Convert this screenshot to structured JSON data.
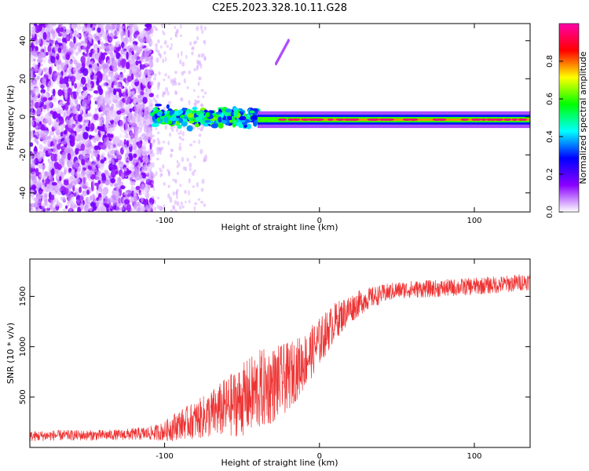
{
  "figure_title": "C2E5.2023.328.10.11.G28",
  "chart_data": [
    {
      "type": "heatmap",
      "title": "C2E5.2023.328.10.11.G28",
      "xlabel": "Height of straight line (km)",
      "ylabel": "Frequency (Hz)",
      "xlim": [
        -187,
        136
      ],
      "ylim": [
        -50,
        49
      ],
      "x_ticks": [
        -100,
        0,
        100
      ],
      "y_ticks": [
        -40,
        -20,
        0,
        20,
        40
      ],
      "colorbar": {
        "label": "Normalized spectral amplitude",
        "range": [
          0,
          1
        ],
        "ticks": [
          0.0,
          0.2,
          0.4,
          0.6,
          0.8
        ],
        "colormap": [
          "#ffffff",
          "#8a00ff",
          "#0000ff",
          "#00ffff",
          "#00ff00",
          "#ffff00",
          "#ff0000",
          "#ff00aa"
        ]
      },
      "features": [
        {
          "name": "broadband noise",
          "x_range": [
            -187,
            -108
          ],
          "freq_range": [
            -50,
            49
          ],
          "amplitude": 0.1
        },
        {
          "name": "transition band",
          "x_range": [
            -108,
            -40
          ],
          "freq_center": 0,
          "freq_halfwidth": 6,
          "amplitude": 0.35
        },
        {
          "name": "meteor trail line",
          "x_range": [
            -40,
            136
          ],
          "freq_center": -1.5,
          "freq_halfwidth": 2,
          "amplitude": 0.9
        },
        {
          "name": "diagonal streak",
          "x_range": [
            -28,
            -20
          ],
          "freq_range": [
            28,
            40
          ],
          "amplitude": 0.1
        }
      ]
    },
    {
      "type": "line",
      "xlabel": "Height of straight line (km)",
      "ylabel": "SNR (10 * v/v)",
      "xlim": [
        -187,
        136
      ],
      "ylim": [
        0,
        1870
      ],
      "x_ticks": [
        -100,
        0,
        100
      ],
      "y_ticks": [
        500,
        1000,
        1500
      ],
      "series": [
        {
          "name": "SNR",
          "color": "#ee3333",
          "x": [
            -187,
            -170,
            -150,
            -130,
            -110,
            -100,
            -95,
            -90,
            -80,
            -70,
            -60,
            -50,
            -40,
            -30,
            -20,
            -10,
            0,
            10,
            20,
            30,
            40,
            50,
            60,
            80,
            100,
            120,
            136
          ],
          "mean": [
            110,
            120,
            120,
            125,
            140,
            160,
            200,
            230,
            270,
            330,
            400,
            470,
            560,
            620,
            700,
            850,
            1050,
            1250,
            1380,
            1470,
            1520,
            1560,
            1570,
            1580,
            1600,
            1620,
            1650
          ],
          "spread": [
            60,
            60,
            60,
            60,
            80,
            110,
            160,
            170,
            220,
            280,
            350,
            420,
            480,
            450,
            400,
            330,
            280,
            220,
            170,
            130,
            110,
            100,
            100,
            100,
            100,
            100,
            100
          ]
        }
      ]
    }
  ]
}
